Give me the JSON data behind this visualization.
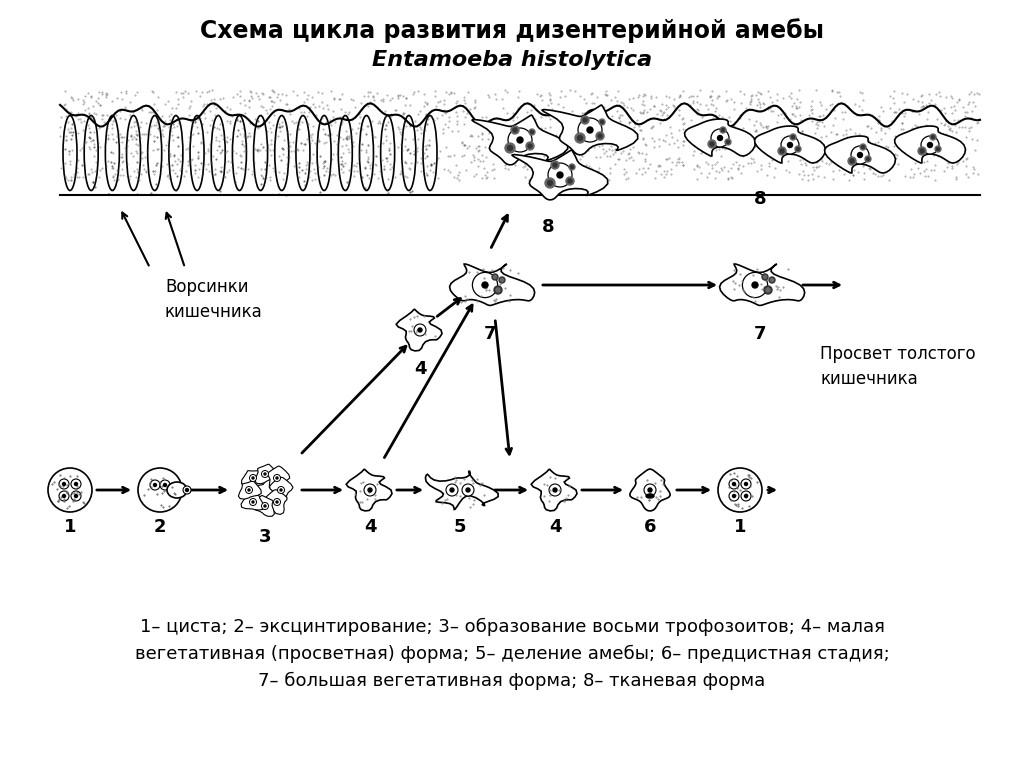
{
  "title_line1": "Схема цикла развития дизентерийной амебы",
  "title_line2": "Entamoeba histolytica",
  "caption": "1– циста; 2– эксцинтирование; 3– образование восьми трофозоитов; 4– малая\nвегетативная (просветная) форма; 5– деление амебы; 6– предцистная стадия;\n7– большая вегетативная форма; 8– тканевая форма",
  "label_villi": "Ворсинки\nкишечника",
  "label_lumen": "Просвет толстого\nкишечника",
  "bg_color": "#ffffff",
  "fg_color": "#000000",
  "stipple_color": "#aaaaaa"
}
